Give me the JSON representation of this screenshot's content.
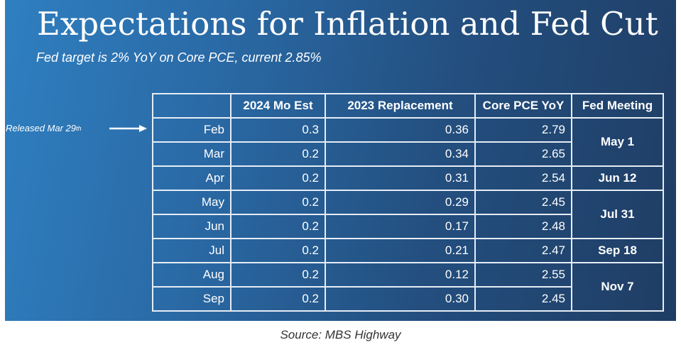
{
  "title": "Expectations for Inflation and Fed Cut",
  "subtitle": "Fed target is 2% YoY on Core PCE, current 2.85%",
  "note": {
    "text": "Released Mar 29",
    "sup": "th"
  },
  "source": "Source: MBS Highway",
  "chart_data": {
    "type": "table",
    "columns": [
      "",
      "2024 Mo Est",
      "2023 Replacement",
      "Core PCE YoY",
      "Fed Meeting"
    ],
    "rows": [
      [
        "Feb",
        "0.3",
        "0.36",
        "2.79"
      ],
      [
        "Mar",
        "0.2",
        "0.34",
        "2.65"
      ],
      [
        "Apr",
        "0.2",
        "0.31",
        "2.54"
      ],
      [
        "May",
        "0.2",
        "0.29",
        "2.45"
      ],
      [
        "Jun",
        "0.2",
        "0.17",
        "2.48"
      ],
      [
        "Jul",
        "0.2",
        "0.21",
        "2.47"
      ],
      [
        "Aug",
        "0.2",
        "0.12",
        "2.55"
      ],
      [
        "Sep",
        "0.2",
        "0.30",
        "2.45"
      ]
    ],
    "fed_meetings": [
      {
        "label": "May 1",
        "months": [
          "Feb",
          "Mar"
        ]
      },
      {
        "label": "Jun 12",
        "months": [
          "Apr"
        ]
      },
      {
        "label": "Jul 31",
        "months": [
          "May",
          "Jun"
        ]
      },
      {
        "label": "Sep 18",
        "months": [
          "Jul"
        ]
      },
      {
        "label": "Nov 7",
        "months": [
          "Aug",
          "Sep"
        ]
      }
    ]
  }
}
